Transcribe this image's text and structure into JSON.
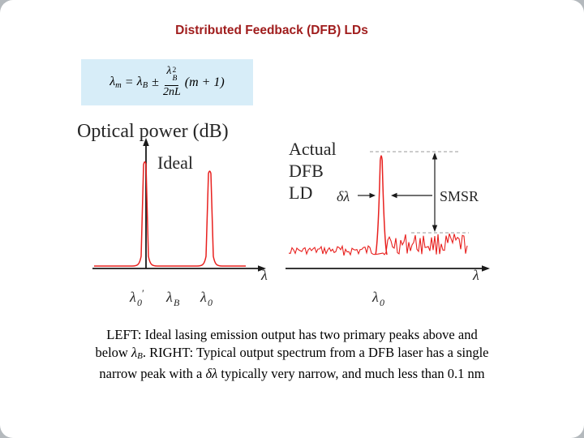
{
  "slide": {
    "title": "Distributed Feedback (DFB) LDs"
  },
  "formula": {
    "lhs_base": "λ",
    "lhs_sub": "m",
    "equals": "=",
    "rhs_base": "λ",
    "rhs_sub": "B",
    "plus_minus": "±",
    "frac_num_base": "λ",
    "frac_num_sup": "2",
    "frac_num_sub": "B",
    "frac_den": "2nL",
    "tail": "(m + 1)"
  },
  "left_plot": {
    "y_axis_label": "Optical power (dB)",
    "curve_label": "Ideal",
    "x_axis_label": "λ",
    "tick1_base": "λ",
    "tick1_sub": "0",
    "tick1_prime": "′",
    "tick2_base": "λ",
    "tick2_sub": "B",
    "tick3_base": "λ",
    "tick3_sub": "0"
  },
  "right_plot": {
    "label_line1": "Actual",
    "label_line2": "DFB",
    "label_line3": "LD",
    "linewidth_label": "δλ",
    "smsr_label": "SMSR",
    "x_axis_label": "λ",
    "tick1_base": "λ",
    "tick1_sub": "0"
  },
  "caption": {
    "line1": "LEFT: Ideal lasing emission output has two primary peaks above and",
    "line2_pre": "below ",
    "line2_sym_base": "λ",
    "line2_sym_sub": "B",
    "line2_rest": ". RIGHT: Typical output spectrum from a DFB laser has a single",
    "line3_pre": "narrow peak with a ",
    "line3_sym": "δλ",
    "line3_rest": " typically very narrow, and much less than 0.1 nm"
  },
  "colors": {
    "title": "#a01d1d",
    "curve": "#e8201e",
    "formula_bg": "#d7edf8",
    "axis": "#1a1a1a",
    "dashed_guide": "#9a9a9a"
  },
  "chart_data": [
    {
      "type": "line",
      "name": "ideal-dfb-output-spectrum",
      "title": "Ideal",
      "ylabel": "Optical power (dB)",
      "xlabel": "λ",
      "x_tick_labels": [
        "λ0′",
        "λB",
        "λ0"
      ],
      "grid": false,
      "legend": false,
      "series": [
        {
          "name": "ideal-spectrum",
          "description": "Two narrow lasing peaks at λ0′ and λ0, symmetric about the Bragg wavelength λB, on a flat baseline"
        }
      ]
    },
    {
      "type": "line",
      "name": "actual-dfb-ld-output-spectrum",
      "title": "Actual DFB LD",
      "xlabel": "λ",
      "x_tick_labels": [
        "λ0"
      ],
      "annotations": [
        "δλ",
        "SMSR"
      ],
      "grid": false,
      "legend": false,
      "series": [
        {
          "name": "measured-spectrum",
          "description": "Single dominant narrow peak at λ0 with linewidth δλ rising above noisy suppressed side modes; SMSR spans from side-mode level (dashed) to peak top (dashed)"
        }
      ]
    }
  ]
}
